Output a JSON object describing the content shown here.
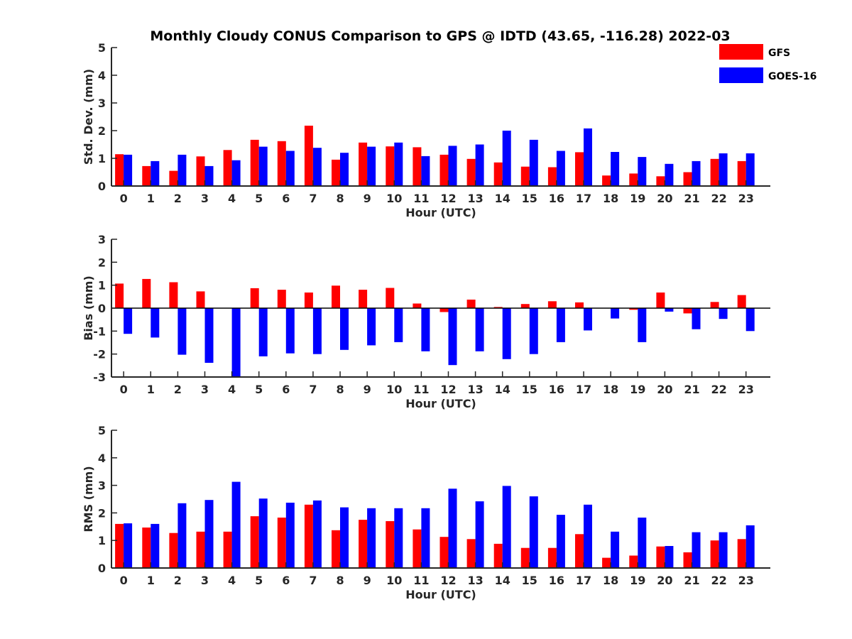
{
  "title": "Monthly Cloudy CONUS Comparison to GPS @ IDTD (43.65, -116.28) 2022-03",
  "legend": [
    {
      "label": "GFS",
      "color": "#ff0000"
    },
    {
      "label": "GOES-16",
      "color": "#0000ff"
    }
  ],
  "colors": {
    "gfs": "#ff0000",
    "goes": "#0000ff",
    "axis": "#262626"
  },
  "chart_data": [
    {
      "type": "bar",
      "xlabel": "Hour (UTC)",
      "ylabel": "Std. Dev. (mm)",
      "ylim": [
        0,
        5
      ],
      "yticks": [
        0,
        1,
        2,
        3,
        4,
        5
      ],
      "categories": [
        "0",
        "1",
        "2",
        "3",
        "4",
        "5",
        "6",
        "7",
        "8",
        "9",
        "10",
        "11",
        "12",
        "13",
        "14",
        "15",
        "16",
        "17",
        "18",
        "19",
        "20",
        "21",
        "22",
        "23"
      ],
      "series": [
        {
          "name": "GFS",
          "values": [
            1.15,
            0.72,
            0.55,
            1.07,
            1.3,
            1.67,
            1.62,
            2.18,
            0.95,
            1.57,
            1.43,
            1.4,
            1.13,
            0.98,
            0.85,
            0.7,
            0.68,
            1.22,
            0.38,
            0.45,
            0.35,
            0.5,
            0.98,
            0.9
          ]
        },
        {
          "name": "GOES-16",
          "values": [
            1.13,
            0.9,
            1.13,
            0.72,
            0.93,
            1.42,
            1.27,
            1.38,
            1.2,
            1.42,
            1.57,
            1.08,
            1.45,
            1.5,
            2.0,
            1.67,
            1.27,
            2.08,
            1.23,
            1.05,
            0.8,
            0.9,
            1.18,
            1.18
          ]
        }
      ]
    },
    {
      "type": "bar",
      "xlabel": "Hour (UTC)",
      "ylabel": "Bias (mm)",
      "ylim": [
        -3,
        3
      ],
      "yticks": [
        -3,
        -2,
        -1,
        0,
        1,
        2,
        3
      ],
      "categories": [
        "0",
        "1",
        "2",
        "3",
        "4",
        "5",
        "6",
        "7",
        "8",
        "9",
        "10",
        "11",
        "12",
        "13",
        "14",
        "15",
        "16",
        "17",
        "18",
        "19",
        "20",
        "21",
        "22",
        "23"
      ],
      "series": [
        {
          "name": "GFS",
          "values": [
            1.07,
            1.27,
            1.13,
            0.73,
            0.0,
            0.87,
            0.8,
            0.68,
            0.98,
            0.8,
            0.88,
            0.2,
            -0.17,
            0.37,
            0.05,
            0.18,
            0.3,
            0.25,
            0.0,
            -0.07,
            0.68,
            -0.23,
            0.27,
            0.57
          ]
        },
        {
          "name": "GOES-16",
          "values": [
            -1.12,
            -1.28,
            -2.03,
            -2.38,
            -3.0,
            -2.1,
            -1.97,
            -2.0,
            -1.82,
            -1.62,
            -1.48,
            -1.88,
            -2.48,
            -1.88,
            -2.22,
            -2.0,
            -1.48,
            -0.97,
            -0.45,
            -1.48,
            -0.15,
            -0.92,
            -0.47,
            -1.0
          ]
        }
      ]
    },
    {
      "type": "bar",
      "xlabel": "Hour (UTC)",
      "ylabel": "RMS (mm)",
      "ylim": [
        0,
        5
      ],
      "yticks": [
        0,
        1,
        2,
        3,
        4,
        5
      ],
      "categories": [
        "0",
        "1",
        "2",
        "3",
        "4",
        "5",
        "6",
        "7",
        "8",
        "9",
        "10",
        "11",
        "12",
        "13",
        "14",
        "15",
        "16",
        "17",
        "18",
        "19",
        "20",
        "21",
        "22",
        "23"
      ],
      "series": [
        {
          "name": "GFS",
          "values": [
            1.6,
            1.47,
            1.27,
            1.32,
            1.32,
            1.88,
            1.83,
            2.3,
            1.37,
            1.75,
            1.7,
            1.4,
            1.13,
            1.05,
            0.88,
            0.73,
            0.73,
            1.23,
            0.37,
            0.45,
            0.78,
            0.57,
            1.0,
            1.05
          ]
        },
        {
          "name": "GOES-16",
          "values": [
            1.62,
            1.6,
            2.35,
            2.47,
            3.13,
            2.52,
            2.37,
            2.45,
            2.2,
            2.17,
            2.17,
            2.17,
            2.88,
            2.42,
            2.98,
            2.6,
            1.93,
            2.3,
            1.32,
            1.83,
            0.8,
            1.3,
            1.3,
            1.55
          ]
        }
      ]
    }
  ]
}
